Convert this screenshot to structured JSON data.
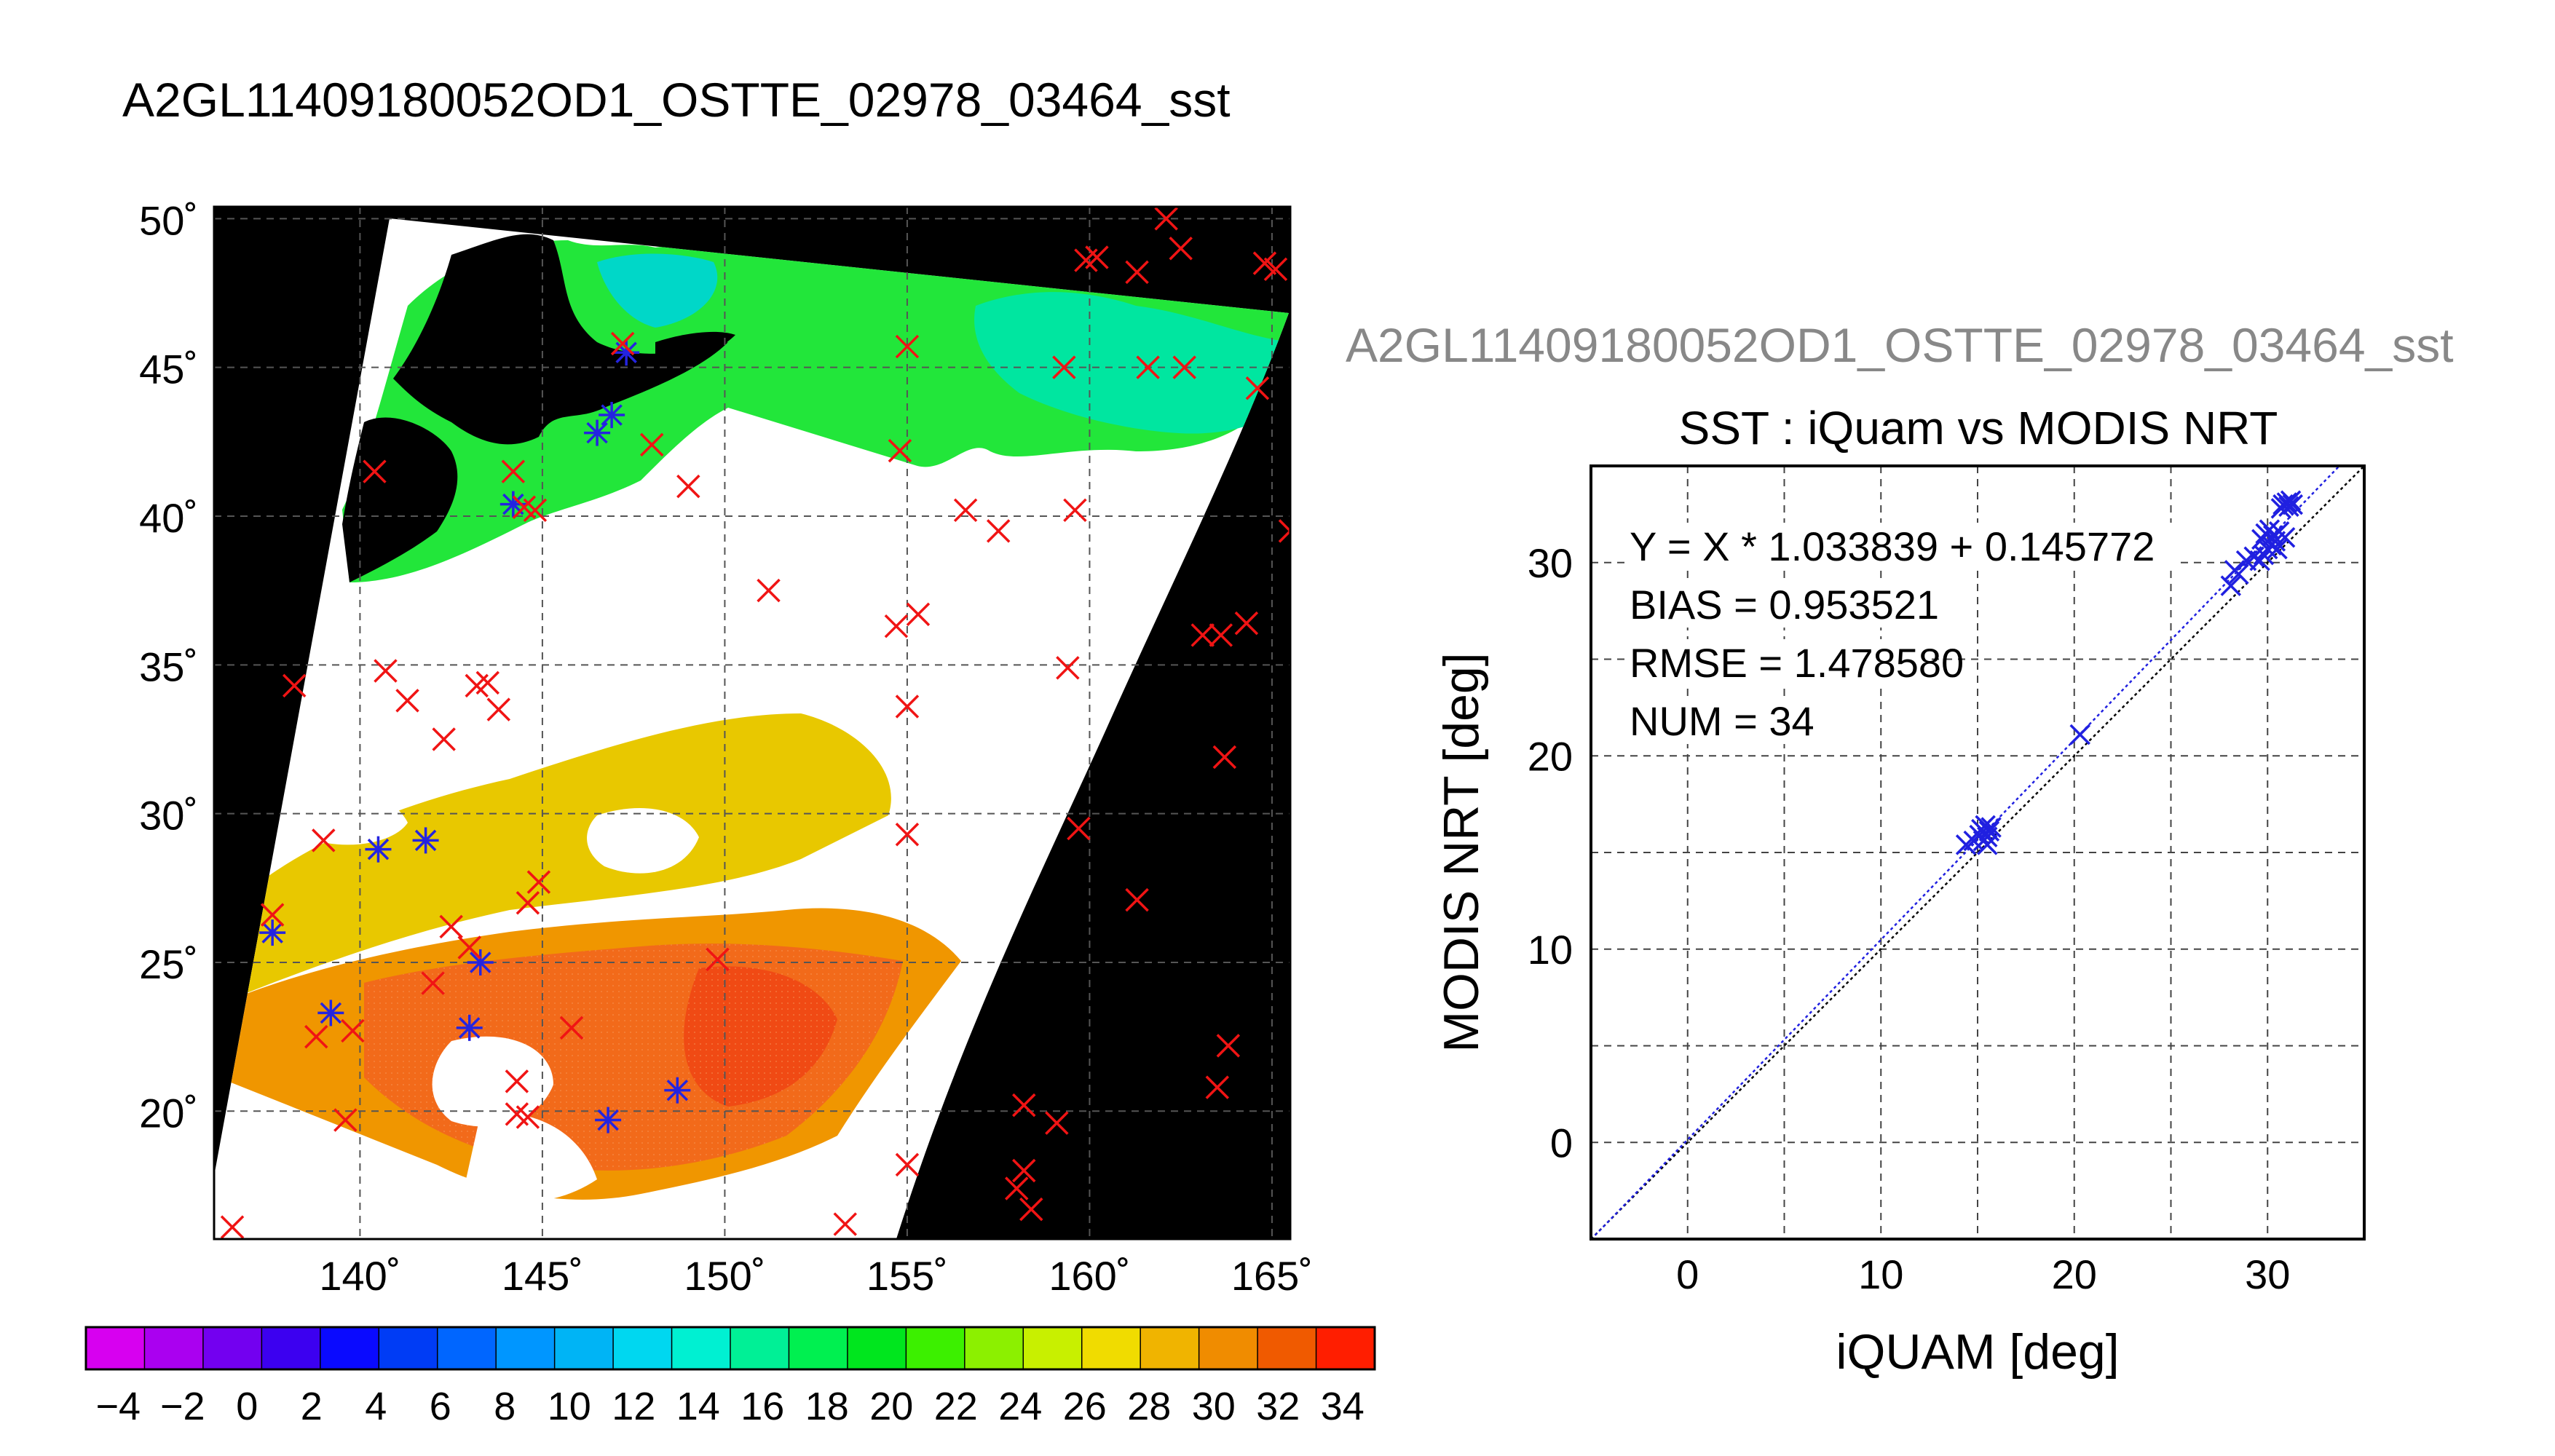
{
  "map_title": "A2GL11409180052OD1_OSTTE_02978_03464_sst",
  "scatter_header": "A2GL11409180052OD1_OSTTE_02978_03464_sst",
  "colorbar_ticks": [
    "−4",
    "−2",
    "0",
    "2",
    "4",
    "6",
    "8",
    "10",
    "12",
    "14",
    "16",
    "18",
    "20",
    "22",
    "24",
    "26",
    "28",
    "30",
    "32",
    "34"
  ],
  "colorbar_colors": [
    "#d700f0",
    "#aa00f0",
    "#7300f0",
    "#3c00f0",
    "#0a0aff",
    "#003cf5",
    "#0066ff",
    "#0096ff",
    "#00b4f5",
    "#00d7f0",
    "#00f0d2",
    "#00f096",
    "#00f050",
    "#00e61e",
    "#3cf000",
    "#8cf000",
    "#c8f000",
    "#f0dc00",
    "#f0b400",
    "#f08c00",
    "#f05a00",
    "#ff1e00"
  ],
  "chart_data": [
    {
      "type": "map",
      "title": "A2GL11409180052OD1_OSTTE_02978_03464_sst",
      "lon_range": [
        136,
        165.5
      ],
      "lat_range": [
        15.7,
        50.4
      ],
      "lon_ticks": [
        "140˚",
        "145˚",
        "150˚",
        "155˚",
        "160˚",
        "165˚"
      ],
      "lat_ticks": [
        "20˚",
        "25˚",
        "30˚",
        "35˚",
        "40˚",
        "45˚",
        "50˚"
      ],
      "colorbar_range": [
        -5,
        35
      ],
      "grid": true,
      "markers": {
        "red_x": [
          [
            136.5,
            16.1
          ],
          [
            137.6,
            26.6
          ],
          [
            138.2,
            34.3
          ],
          [
            139,
            29.1
          ],
          [
            138.8,
            22.5
          ],
          [
            139.6,
            19.7
          ],
          [
            139.8,
            22.7
          ],
          [
            140.4,
            41.5
          ],
          [
            140.7,
            34.8
          ],
          [
            141.3,
            33.8
          ],
          [
            142,
            24.3
          ],
          [
            142.3,
            32.5
          ],
          [
            142.5,
            26.2
          ],
          [
            143,
            25.5
          ],
          [
            143.2,
            34.3
          ],
          [
            143.5,
            34.4
          ],
          [
            143.8,
            33.5
          ],
          [
            144.3,
            21
          ],
          [
            144.3,
            19.9
          ],
          [
            144.6,
            19.8
          ],
          [
            144.5,
            40.3
          ],
          [
            144.2,
            41.5
          ],
          [
            144.8,
            40.2
          ],
          [
            144.6,
            27
          ],
          [
            144.9,
            27.7
          ],
          [
            145.8,
            22.8
          ],
          [
            147.2,
            45.8
          ],
          [
            148,
            42.4
          ],
          [
            149,
            41
          ],
          [
            149.8,
            25.1
          ],
          [
            151.2,
            37.5
          ],
          [
            153.3,
            16.2
          ],
          [
            154.7,
            36.3
          ],
          [
            154.8,
            42.2
          ],
          [
            155,
            45.7
          ],
          [
            155,
            33.6
          ],
          [
            155,
            29.3
          ],
          [
            155,
            18.2
          ],
          [
            155.3,
            36.7
          ],
          [
            156.6,
            40.2
          ],
          [
            157.5,
            39.5
          ],
          [
            158,
            17.4
          ],
          [
            158.2,
            18
          ],
          [
            158.4,
            16.7
          ],
          [
            158.2,
            20.2
          ],
          [
            159.1,
            19.6
          ],
          [
            159.4,
            34.9
          ],
          [
            159.3,
            45
          ],
          [
            159.6,
            40.2
          ],
          [
            159.7,
            29.5
          ],
          [
            159.9,
            48.6
          ],
          [
            160.2,
            48.7
          ],
          [
            161.3,
            27.1
          ],
          [
            161.3,
            48.2
          ],
          [
            161.6,
            45
          ],
          [
            162.1,
            50
          ],
          [
            162.6,
            45
          ],
          [
            162.5,
            49
          ],
          [
            163.1,
            36
          ],
          [
            163.5,
            20.8
          ],
          [
            163.6,
            36
          ],
          [
            163.7,
            31.9
          ],
          [
            163.8,
            22.2
          ],
          [
            164.3,
            36.4
          ],
          [
            164.6,
            44.3
          ],
          [
            164.8,
            48.5
          ],
          [
            165.1,
            48.3
          ],
          [
            165.5,
            39.5
          ]
        ],
        "blue_star": [
          [
            137.6,
            26
          ],
          [
            139.2,
            23.3
          ],
          [
            140.5,
            28.8
          ],
          [
            141.8,
            29.1
          ],
          [
            143.3,
            25
          ],
          [
            143,
            22.8
          ],
          [
            144.2,
            40.4
          ],
          [
            146.5,
            42.8
          ],
          [
            146.9,
            43.4
          ],
          [
            147.3,
            45.5
          ],
          [
            146.8,
            19.7
          ],
          [
            148.7,
            20.7
          ]
        ]
      }
    },
    {
      "type": "scatter",
      "title": "SST : iQuam vs MODIS NRT",
      "xlabel": "iQUAM [deg]",
      "ylabel": "MODIS NRT [deg]",
      "xlim": [
        -5,
        35
      ],
      "ylim": [
        -5,
        35
      ],
      "xticks": [
        0,
        10,
        20,
        30
      ],
      "yticks": [
        0,
        10,
        20,
        30
      ],
      "grid": true,
      "annotations": [
        "Y = X * 1.033839 + 0.145772",
        "BIAS = 0.953521",
        "RMSE = 1.478580",
        "NUM = 34"
      ],
      "fit": {
        "slope": 1.033839,
        "intercept": 0.145772
      },
      "points": [
        [
          14.4,
          15.4
        ],
        [
          14.8,
          15.6
        ],
        [
          15.1,
          15.9
        ],
        [
          15.2,
          16.2
        ],
        [
          15.3,
          15.6
        ],
        [
          15.4,
          16.4
        ],
        [
          15.5,
          15.8
        ],
        [
          15.6,
          16.1
        ],
        [
          15.7,
          16.3
        ],
        [
          15.5,
          15.4
        ],
        [
          20.3,
          21.1
        ],
        [
          28.1,
          28.8
        ],
        [
          28.3,
          29.6
        ],
        [
          28.5,
          29.4
        ],
        [
          28.9,
          30.1
        ],
        [
          29.3,
          30.3
        ],
        [
          29.6,
          30.1
        ],
        [
          29.7,
          31.2
        ],
        [
          29.8,
          30.4
        ],
        [
          29.9,
          31.5
        ],
        [
          30,
          30.7
        ],
        [
          30.1,
          31.7
        ],
        [
          30.2,
          30.9
        ],
        [
          30.3,
          31.4
        ],
        [
          30.4,
          31.1
        ],
        [
          30.5,
          30.7
        ],
        [
          30.6,
          31.6
        ],
        [
          30.7,
          32.8
        ],
        [
          30.8,
          33
        ],
        [
          30.9,
          31.3
        ],
        [
          31,
          33.1
        ],
        [
          31.1,
          32.9
        ],
        [
          31.2,
          33.2
        ],
        [
          31.3,
          33
        ]
      ]
    }
  ]
}
